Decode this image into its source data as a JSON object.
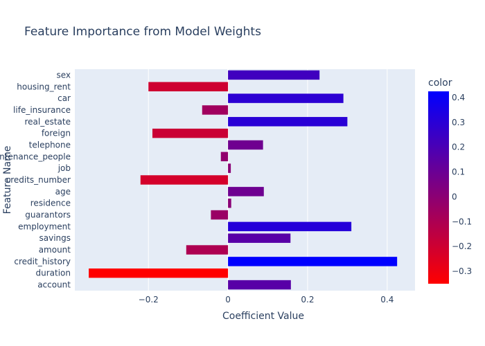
{
  "chart_data": {
    "type": "bar",
    "orientation": "horizontal",
    "title": "Feature Importance from Model Weights",
    "xlabel": "Coefficient Value",
    "ylabel": "Feature Name",
    "xlim": [
      -0.385,
      0.47
    ],
    "x_ticks": [
      -0.2,
      0,
      0.2,
      0.4
    ],
    "x_tick_labels": [
      "−0.2",
      "0",
      "0.2",
      "0.4"
    ],
    "grid": true,
    "categories": [
      "sex",
      "housing_rent",
      "car",
      "life_insurance",
      "real_estate",
      "foreign",
      "telephone",
      "maintenance_people",
      "job",
      "credits_number",
      "age",
      "residence",
      "guarantors",
      "employment",
      "savings",
      "amount",
      "credit_history",
      "duration",
      "account"
    ],
    "values": [
      0.23,
      -0.2,
      0.29,
      -0.065,
      0.3,
      -0.19,
      0.088,
      -0.018,
      0.007,
      -0.22,
      0.09,
      0.008,
      -0.043,
      0.31,
      0.157,
      -0.105,
      0.425,
      -0.35,
      0.158
    ],
    "colorbar": {
      "title": "color",
      "min": -0.35,
      "max": 0.425,
      "ticks": [
        0.4,
        0.3,
        0.2,
        0.1,
        0,
        -0.1,
        -0.2,
        -0.3
      ],
      "tick_labels": [
        "0.4",
        "0.3",
        "0.2",
        "0.1",
        "0",
        "−0.1",
        "−0.2",
        "−0.3"
      ],
      "color_low": "#ff0000",
      "color_high": "#0000ff"
    },
    "plot_bg": "#e5ecf6",
    "grid_color": "#ffffff"
  }
}
